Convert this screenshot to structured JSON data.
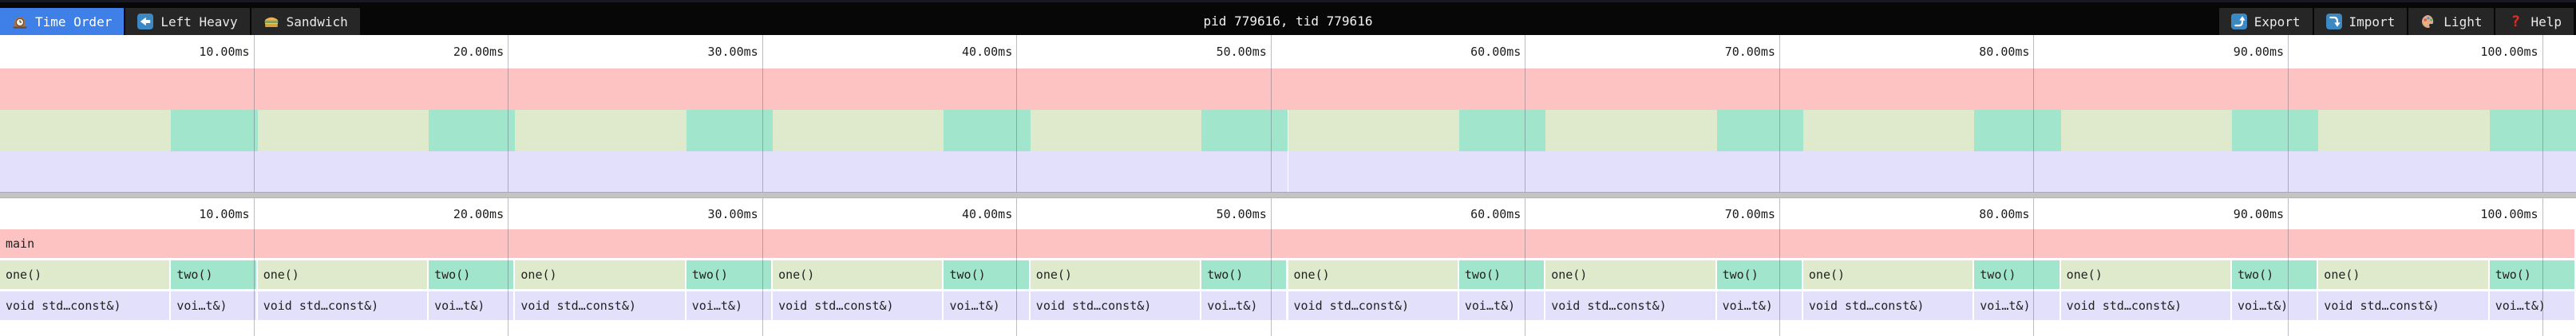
{
  "toolbar": {
    "tabs": [
      {
        "label": "Time Order",
        "icon": "clock-icon",
        "active": true
      },
      {
        "label": "Left Heavy",
        "icon": "left-arrow-icon",
        "active": false
      },
      {
        "label": "Sandwich",
        "icon": "sandwich-icon",
        "active": false
      }
    ],
    "title": "pid 779616, tid 779616",
    "actions": [
      {
        "label": "Export",
        "icon": "export-icon"
      },
      {
        "label": "Import",
        "icon": "import-icon"
      },
      {
        "label": "Light",
        "icon": "palette-icon"
      },
      {
        "label": "Help",
        "icon": "help-icon"
      }
    ]
  },
  "colors": {
    "pink": "#fdc3c3",
    "green": "#dfe9cc",
    "teal": "#a2e5cd",
    "lavender": "#e2e0fb",
    "active_tab": "#3e80e8",
    "toolbar_bg": "#070707",
    "tab_bg": "#262626",
    "separator": "#c3c3c3"
  },
  "chart_data": {
    "type": "flamegraph",
    "duration_ms": 101.3,
    "ticks": [
      {
        "ms": 10,
        "label": "10.00ms"
      },
      {
        "ms": 20,
        "label": "20.00ms"
      },
      {
        "ms": 30,
        "label": "30.00ms"
      },
      {
        "ms": 40,
        "label": "40.00ms"
      },
      {
        "ms": 50,
        "label": "50.00ms"
      },
      {
        "ms": 60,
        "label": "60.00ms"
      },
      {
        "ms": 70,
        "label": "70.00ms"
      },
      {
        "ms": 80,
        "label": "80.00ms"
      },
      {
        "ms": 90,
        "label": "90.00ms"
      },
      {
        "ms": 100,
        "label": "100.00ms"
      }
    ],
    "levels": [
      {
        "name": "depth-0",
        "frames": [
          {
            "label": "main",
            "color": "pink",
            "start": 0,
            "end": 101.3
          }
        ]
      },
      {
        "name": "depth-1",
        "frames": [
          {
            "label": "one()",
            "color": "green",
            "start": 0,
            "end": 6.73
          },
          {
            "label": "two()",
            "color": "teal",
            "start": 6.73,
            "end": 10.13
          },
          {
            "label": "one()",
            "color": "green",
            "start": 10.13,
            "end": 16.86
          },
          {
            "label": "two()",
            "color": "teal",
            "start": 16.86,
            "end": 20.26
          },
          {
            "label": "one()",
            "color": "green",
            "start": 20.26,
            "end": 26.99
          },
          {
            "label": "two()",
            "color": "teal",
            "start": 26.99,
            "end": 30.39
          },
          {
            "label": "one()",
            "color": "green",
            "start": 30.39,
            "end": 37.12
          },
          {
            "label": "two()",
            "color": "teal",
            "start": 37.12,
            "end": 40.52
          },
          {
            "label": "one()",
            "color": "green",
            "start": 40.52,
            "end": 47.25
          },
          {
            "label": "two()",
            "color": "teal",
            "start": 47.25,
            "end": 50.65
          },
          {
            "label": "one()",
            "color": "green",
            "start": 50.65,
            "end": 57.38
          },
          {
            "label": "two()",
            "color": "teal",
            "start": 57.38,
            "end": 60.78
          },
          {
            "label": "one()",
            "color": "green",
            "start": 60.78,
            "end": 67.51
          },
          {
            "label": "two()",
            "color": "teal",
            "start": 67.51,
            "end": 70.91
          },
          {
            "label": "one()",
            "color": "green",
            "start": 70.91,
            "end": 77.64
          },
          {
            "label": "two()",
            "color": "teal",
            "start": 77.64,
            "end": 81.04
          },
          {
            "label": "one()",
            "color": "green",
            "start": 81.04,
            "end": 87.77
          },
          {
            "label": "two()",
            "color": "teal",
            "start": 87.77,
            "end": 91.17
          },
          {
            "label": "one()",
            "color": "green",
            "start": 91.17,
            "end": 97.9
          },
          {
            "label": "two()",
            "color": "teal",
            "start": 97.9,
            "end": 101.3
          }
        ]
      },
      {
        "name": "depth-2",
        "frames": [
          {
            "label": "void std…const&)",
            "color": "lavender",
            "start": 0,
            "end": 6.73
          },
          {
            "label": "voi…t&)",
            "color": "lavender",
            "start": 6.73,
            "end": 10.13
          },
          {
            "label": "void std…const&)",
            "color": "lavender",
            "start": 10.13,
            "end": 16.86
          },
          {
            "label": "voi…t&)",
            "color": "lavender",
            "start": 16.86,
            "end": 20.26
          },
          {
            "label": "void std…const&)",
            "color": "lavender",
            "start": 20.26,
            "end": 26.99
          },
          {
            "label": "voi…t&)",
            "color": "lavender",
            "start": 26.99,
            "end": 30.39
          },
          {
            "label": "void std…const&)",
            "color": "lavender",
            "start": 30.39,
            "end": 37.12
          },
          {
            "label": "voi…t&)",
            "color": "lavender",
            "start": 37.12,
            "end": 40.52
          },
          {
            "label": "void std…const&)",
            "color": "lavender",
            "start": 40.52,
            "end": 47.25
          },
          {
            "label": "voi…t&)",
            "color": "lavender",
            "start": 47.25,
            "end": 50.65
          },
          {
            "label": "void std…const&)",
            "color": "lavender",
            "start": 50.65,
            "end": 57.38
          },
          {
            "label": "voi…t&)",
            "color": "lavender",
            "start": 57.38,
            "end": 60.78
          },
          {
            "label": "void std…const&)",
            "color": "lavender",
            "start": 60.78,
            "end": 67.51
          },
          {
            "label": "voi…t&)",
            "color": "lavender",
            "start": 67.51,
            "end": 70.91
          },
          {
            "label": "void std…const&)",
            "color": "lavender",
            "start": 70.91,
            "end": 77.64
          },
          {
            "label": "voi…t&)",
            "color": "lavender",
            "start": 77.64,
            "end": 81.04
          },
          {
            "label": "void std…const&)",
            "color": "lavender",
            "start": 81.04,
            "end": 87.77
          },
          {
            "label": "voi…t&)",
            "color": "lavender",
            "start": 87.77,
            "end": 91.17
          },
          {
            "label": "void std…const&)",
            "color": "lavender",
            "start": 91.17,
            "end": 97.9
          },
          {
            "label": "voi…t&)",
            "color": "lavender",
            "start": 97.9,
            "end": 101.3
          }
        ]
      }
    ]
  }
}
